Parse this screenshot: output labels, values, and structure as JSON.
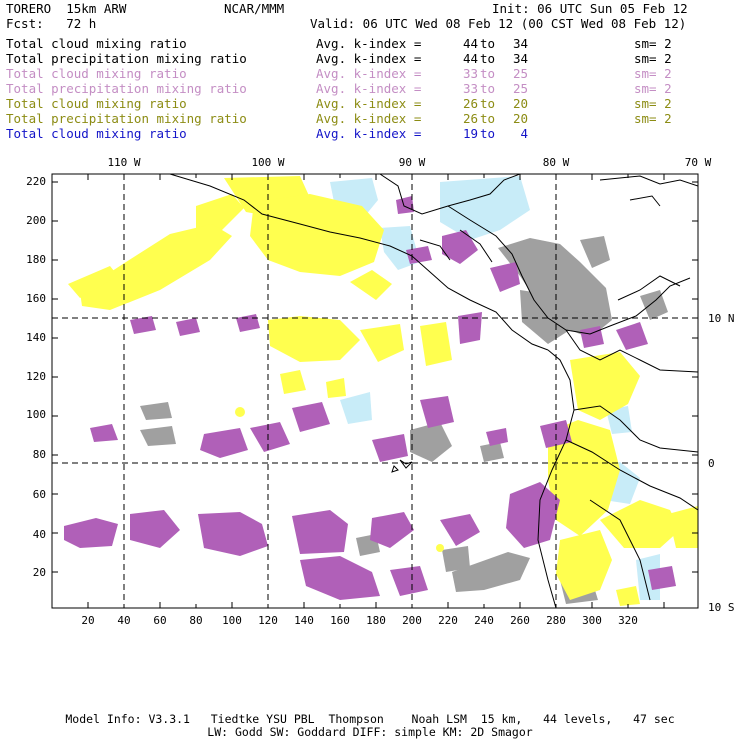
{
  "header": {
    "model": "TORERO  15km ARW",
    "org": "NCAR/MMM",
    "init": "Init: 06 UTC Sun 05 Feb 12",
    "fcst": "Fcst:   72 h",
    "valid": "Valid: 06 UTC Wed 08 Feb 12 (00 CST Wed 08 Feb 12)"
  },
  "legend": [
    {
      "name": "Total cloud mixing ratio",
      "label": "Avg. k-index =",
      "a": "44",
      "to": "to",
      "b": "34",
      "sm": "sm= 2",
      "color": "#000000"
    },
    {
      "name": "Total precipitation mixing ratio",
      "label": "Avg. k-index =",
      "a": "44",
      "to": "to",
      "b": "34",
      "sm": "sm= 2",
      "color": "#000000"
    },
    {
      "name": "Total cloud mixing ratio",
      "label": "Avg. k-index =",
      "a": "33",
      "to": "to",
      "b": "25",
      "sm": "sm= 2",
      "color": "#c48ec4"
    },
    {
      "name": "Total precipitation mixing ratio",
      "label": "Avg. k-index =",
      "a": "33",
      "to": "to",
      "b": "25",
      "sm": "sm= 2",
      "color": "#c48ec4"
    },
    {
      "name": "Total cloud mixing ratio",
      "label": "Avg. k-index =",
      "a": "26",
      "to": "to",
      "b": "20",
      "sm": "sm= 2",
      "color": "#8c8c14"
    },
    {
      "name": "Total precipitation mixing ratio",
      "label": "Avg. k-index =",
      "a": "26",
      "to": "to",
      "b": "20",
      "sm": "sm= 2",
      "color": "#8c8c14"
    },
    {
      "name": "Total cloud mixing ratio",
      "label": "Avg. k-index =",
      "a": "19",
      "to": "to",
      "b": "4",
      "sm": "",
      "color": "#1414c8"
    }
  ],
  "axes": {
    "lon_labels": [
      "110 W",
      "100 W",
      "90 W",
      "80 W",
      "70 W"
    ],
    "lat_labels": [
      "10 N",
      "0",
      "10 S"
    ],
    "x_ticks": [
      "20",
      "40",
      "60",
      "80",
      "100",
      "120",
      "140",
      "160",
      "180",
      "200",
      "220",
      "240",
      "260",
      "280",
      "300",
      "320"
    ],
    "y_ticks": [
      "20",
      "40",
      "60",
      "80",
      "100",
      "120",
      "140",
      "160",
      "180",
      "200",
      "220"
    ]
  },
  "colors": {
    "yellow": "#ffff4f",
    "gray": "#a0a0a0",
    "purple": "#b060b8",
    "lightblue": "#c8ecf8"
  },
  "footer": {
    "line1": "Model Info: V3.3.1   Tiedtke YSU PBL  Thompson    Noah LSM  15 km,   44 levels,   47 sec",
    "line2": "LW: Godd SW: Goddard DIFF: simple KM: 2D Smagor"
  }
}
